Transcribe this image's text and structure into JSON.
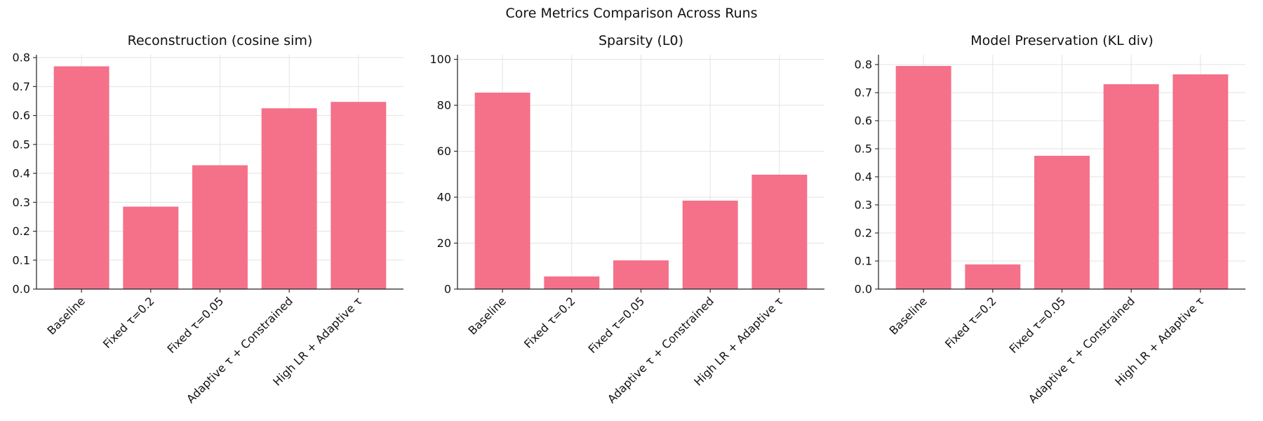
{
  "figure": {
    "title": "Core Metrics Comparison Across Runs",
    "bar_color": "#f47189"
  },
  "chart_data": [
    {
      "type": "bar",
      "title": "Reconstruction (cosine sim)",
      "xlabel": "",
      "ylabel": "",
      "categories": [
        "Baseline",
        "Fixed τ=0.2",
        "Fixed τ=0.05",
        "Adaptive τ + Constrained",
        "High LR + Adaptive τ"
      ],
      "values": [
        0.77,
        0.285,
        0.428,
        0.625,
        0.647
      ],
      "ylim": [
        0,
        0.81
      ],
      "yticks": [
        0.0,
        0.1,
        0.2,
        0.3,
        0.4,
        0.5,
        0.6,
        0.7,
        0.8
      ],
      "ytick_labels": [
        "0.0",
        "0.1",
        "0.2",
        "0.3",
        "0.4",
        "0.5",
        "0.6",
        "0.7",
        "0.8"
      ],
      "grid": true
    },
    {
      "type": "bar",
      "title": "Sparsity (L0)",
      "xlabel": "",
      "ylabel": "",
      "categories": [
        "Baseline",
        "Fixed τ=0.2",
        "Fixed τ=0.05",
        "Adaptive τ + Constrained",
        "High LR + Adaptive τ"
      ],
      "values": [
        85.5,
        5.5,
        12.5,
        38.5,
        49.8
      ],
      "ylim": [
        0,
        102
      ],
      "yticks": [
        0,
        20,
        40,
        60,
        80,
        100
      ],
      "ytick_labels": [
        "0",
        "20",
        "40",
        "60",
        "80",
        "100"
      ],
      "grid": true
    },
    {
      "type": "bar",
      "title": "Model Preservation (KL div)",
      "xlabel": "",
      "ylabel": "",
      "categories": [
        "Baseline",
        "Fixed τ=0.2",
        "Fixed τ=0.05",
        "Adaptive τ + Constrained",
        "High LR + Adaptive τ"
      ],
      "values": [
        0.795,
        0.088,
        0.475,
        0.73,
        0.765
      ],
      "ylim": [
        0,
        0.835
      ],
      "yticks": [
        0.0,
        0.1,
        0.2,
        0.3,
        0.4,
        0.5,
        0.6,
        0.7,
        0.8
      ],
      "ytick_labels": [
        "0.0",
        "0.1",
        "0.2",
        "0.3",
        "0.4",
        "0.5",
        "0.6",
        "0.7",
        "0.8"
      ],
      "grid": true
    }
  ]
}
